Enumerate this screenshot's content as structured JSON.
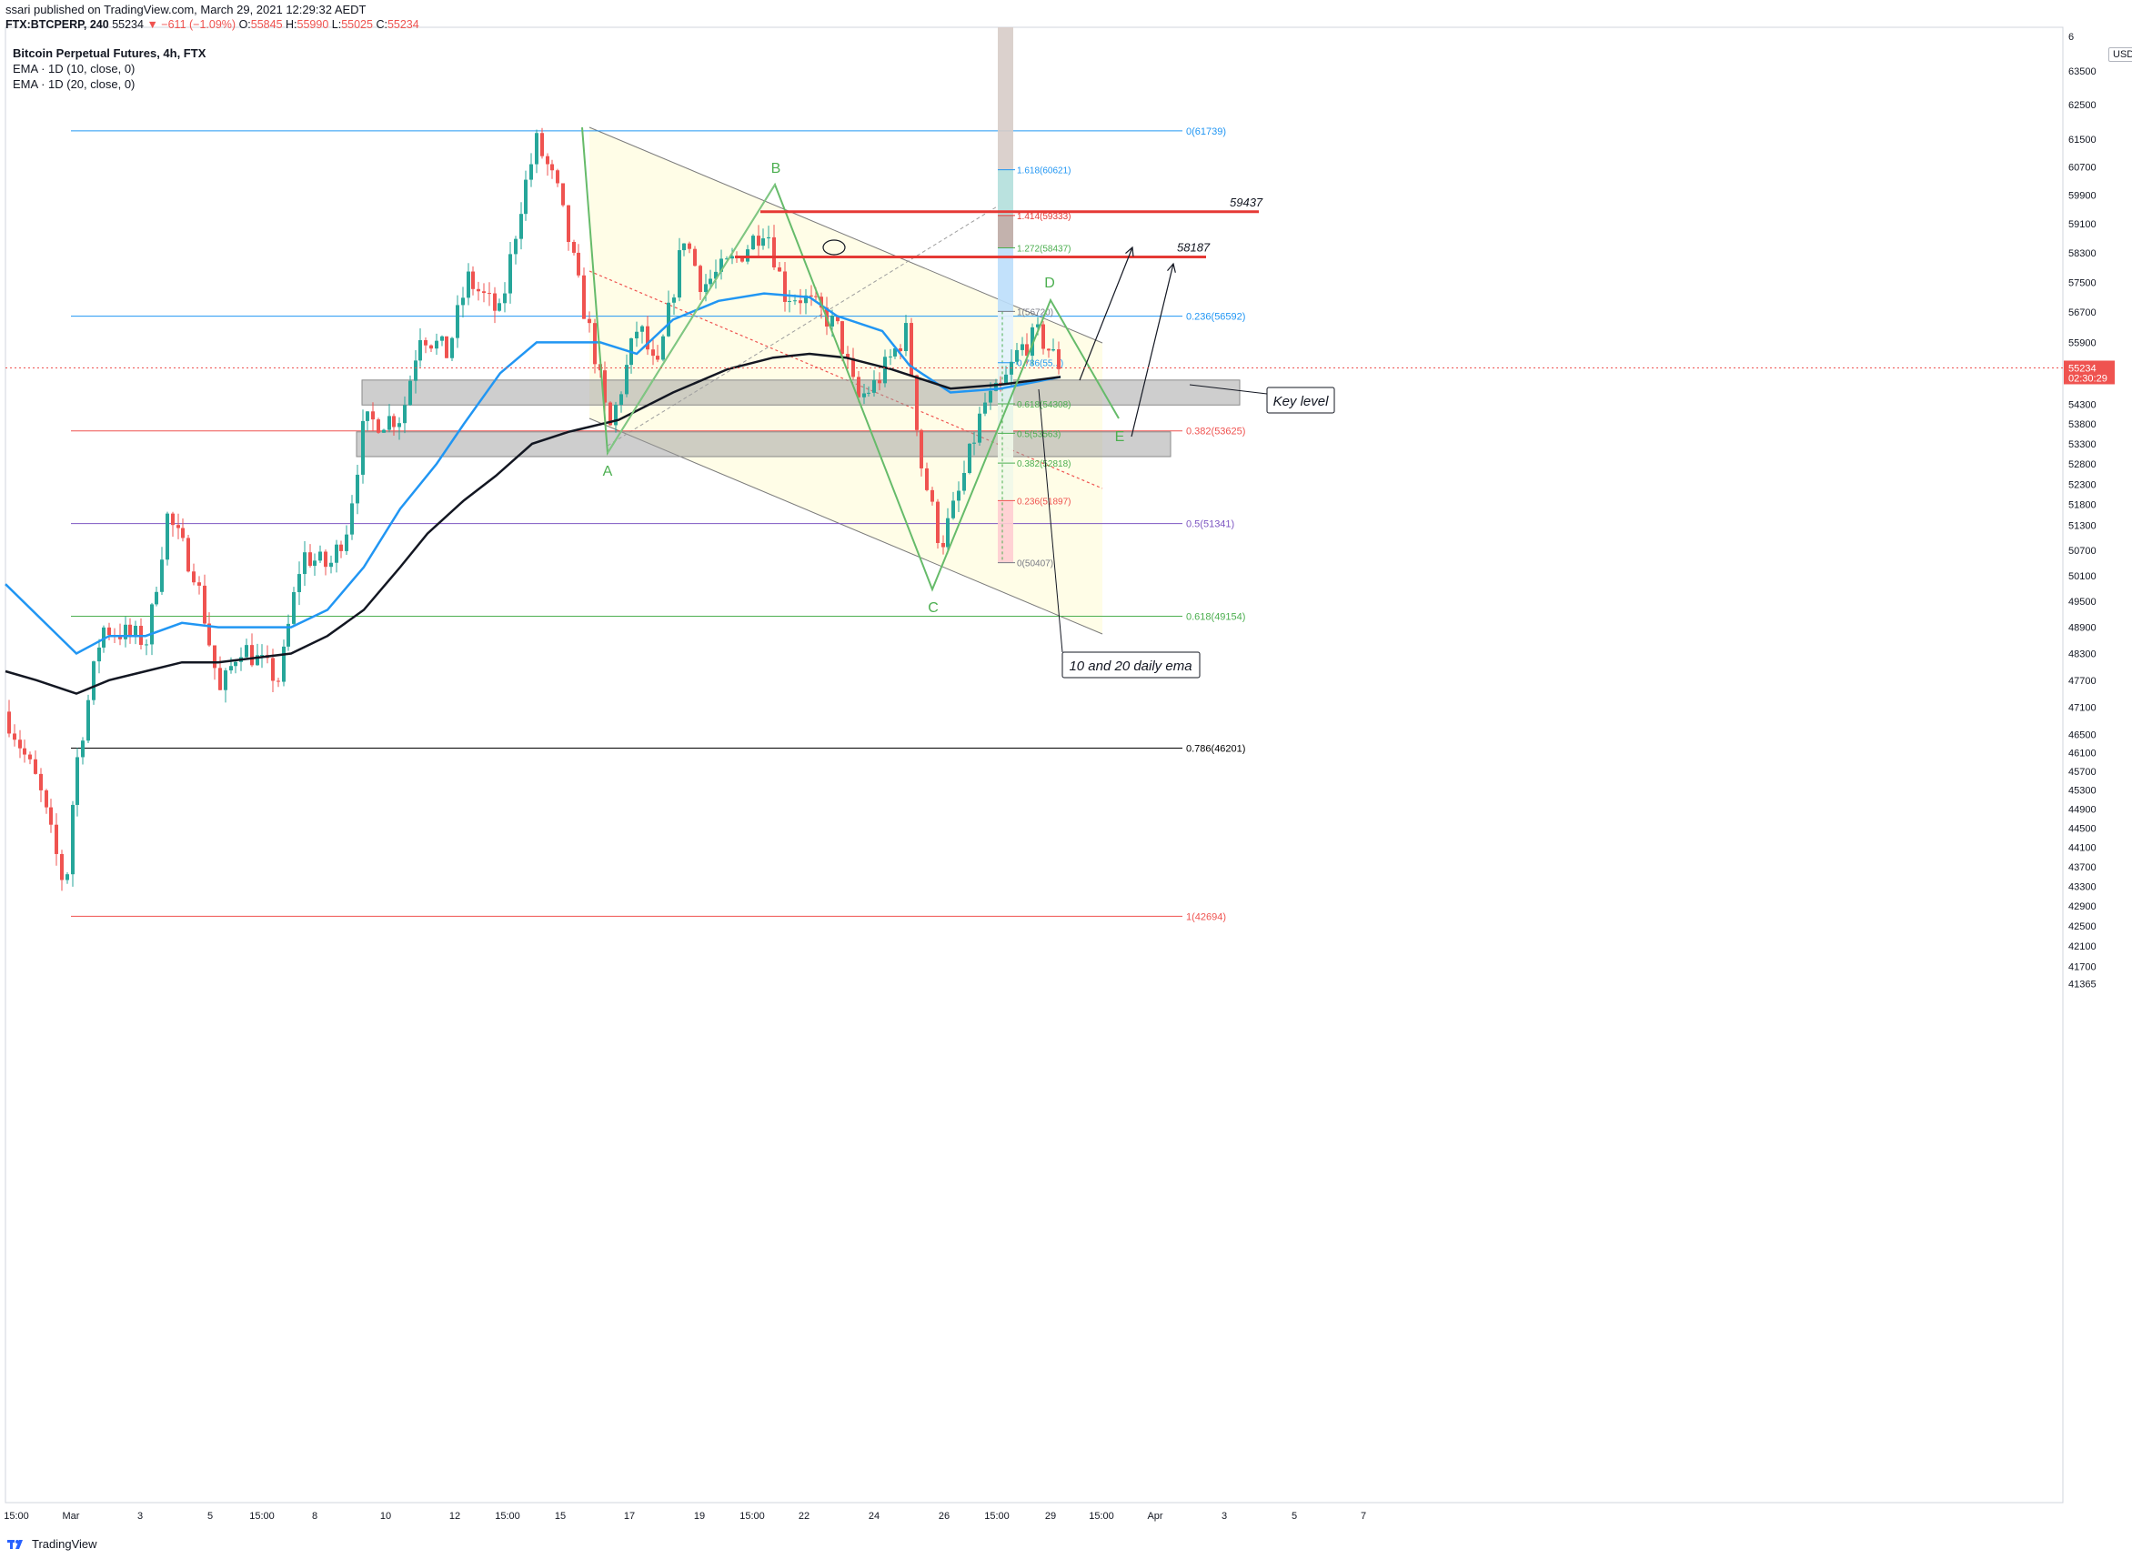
{
  "header": {
    "published": "ssari published on TradingView.com, March 29, 2021 12:29:32 AEDT",
    "symbol": "FTX:BTCPERP, 240",
    "last": "55234",
    "change_arrow": "▼",
    "change": "−611 (−1.09%)",
    "o_label": "O:",
    "o": "55845",
    "h_label": "H:",
    "h": "55990",
    "l_label": "L:",
    "l": "55025",
    "c_label": "C:",
    "c": "55234"
  },
  "legend": {
    "title": "Bitcoin Perpetual Futures, 4h, FTX",
    "ema1": "EMA · 1D (10, close, 0)",
    "ema2": "EMA · 1D (20, close, 0)"
  },
  "controls": {
    "currency": "USD",
    "gear_icon": "gear-icon"
  },
  "footer": {
    "brand": "TradingView",
    "logo_icon": "tradingview-logo-icon"
  },
  "colors": {
    "up": "#26a69a",
    "down": "#ef5350",
    "ema10": "#2196f3",
    "ema20": "#131722",
    "grey_zone": "#9e9e9e",
    "channel_fill": "#fffde7",
    "pattern": "#4caf50",
    "red_level": "#e53935",
    "fib_blue": "#2196f3",
    "fib_red": "#ef5350",
    "fib_purple": "#7e57c2",
    "fib_green": "#4caf50",
    "fib_black": "#000000"
  },
  "chart_data": {
    "type": "candlestick",
    "title": "Bitcoin Perpetual Futures, 4h, FTX",
    "price_axis": {
      "ticks": [
        "63500",
        "62500",
        "61500",
        "60700",
        "59900",
        "59100",
        "58300",
        "57500",
        "56700",
        "55900",
        "55100",
        "54300",
        "53800",
        "53300",
        "52800",
        "52300",
        "51800",
        "51300",
        "50700",
        "50100",
        "49500",
        "48900",
        "48300",
        "47700",
        "47100",
        "46500",
        "46100",
        "45700",
        "45300",
        "44900",
        "44500",
        "44100",
        "43700",
        "43300",
        "42900",
        "42500",
        "42100",
        "41700",
        "41365"
      ],
      "current_price": "55234",
      "countdown": "02:30:29",
      "top_label": "6"
    },
    "time_axis": {
      "ticks": [
        "15:00",
        "Mar",
        "3",
        "5",
        "15:00",
        "8",
        "10",
        "12",
        "15:00",
        "15",
        "17",
        "19",
        "15:00",
        "22",
        "24",
        "26",
        "15:00",
        "29",
        "15:00",
        "Apr",
        "3",
        "5",
        "7"
      ]
    },
    "fib_retracement_large": [
      {
        "label": "0(61739)",
        "value": 61739,
        "color": "#2196f3"
      },
      {
        "label": "0.236(56592)",
        "value": 56592,
        "color": "#2196f3"
      },
      {
        "label": "0.382(53625)",
        "value": 53625,
        "color": "#ef5350"
      },
      {
        "label": "0.5(51341)",
        "value": 51341,
        "color": "#7e57c2"
      },
      {
        "label": "0.618(49154)",
        "value": 49154,
        "color": "#4caf50"
      },
      {
        "label": "0.786(46201)",
        "value": 46201,
        "color": "#000000"
      },
      {
        "label": "1(42694)",
        "value": 42694,
        "color": "#ef5350"
      }
    ],
    "fib_extension_small": [
      {
        "label": "1.618(60621)",
        "value": 60621
      },
      {
        "label": "1.414(59333)",
        "value": 59333
      },
      {
        "label": "1.272(58437)",
        "value": 58437
      },
      {
        "label": "1(56720)",
        "value": 56720
      },
      {
        "label": "0.786(55...)",
        "value": 55370
      },
      {
        "label": "0.618(54308)",
        "value": 54308
      },
      {
        "label": "0.5(53563)",
        "value": 53563
      },
      {
        "label": "0.382(52818)",
        "value": 52818
      },
      {
        "label": "0.236(51897)",
        "value": 51897
      },
      {
        "label": "0(50407)",
        "value": 50407
      }
    ],
    "horizontal_levels": [
      {
        "label": "59437",
        "value": 59437
      },
      {
        "label": "58187",
        "value": 58187
      }
    ],
    "zones": [
      {
        "name": "key-level-zone",
        "from": 54280,
        "to": 54920
      },
      {
        "name": "lower-zone",
        "from": 52980,
        "to": 53600
      }
    ],
    "pattern_points": [
      "A",
      "B",
      "C",
      "D",
      "E"
    ],
    "annotations": {
      "key_level": "Key level",
      "ema_note": "10 and 20 daily ema"
    },
    "series": [
      {
        "name": "EMA · 1D (10, close, 0)",
        "values": [
          49900,
          48300,
          48700,
          48700,
          49000,
          48900,
          48900,
          49300,
          50300,
          51700,
          53800,
          55100,
          55900,
          55900,
          56500,
          57200,
          57000,
          55600,
          54700,
          54600,
          54800,
          55200
        ]
      },
      {
        "name": "EMA · 1D (20, close, 0)",
        "values": [
          47800,
          47400,
          47900,
          48000,
          48100,
          48200,
          48700,
          49800,
          51100,
          52200,
          53100,
          53600,
          54400,
          54900,
          55100,
          55200,
          54900,
          54600,
          54500,
          54700,
          55000
        ]
      }
    ]
  }
}
